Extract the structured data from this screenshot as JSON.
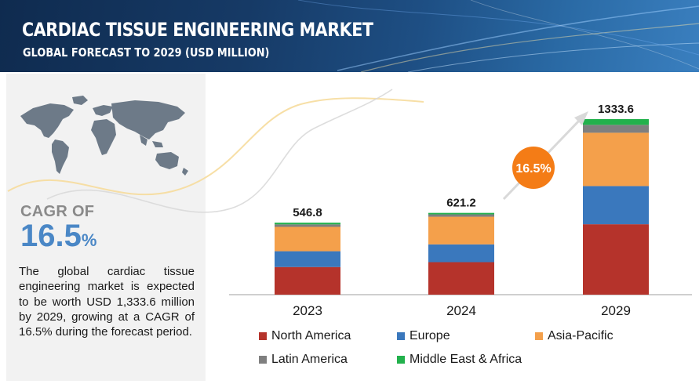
{
  "header": {
    "title": "CARDIAC TISSUE ENGINEERING MARKET",
    "subtitle": "GLOBAL FORECAST TO 2029 (USD MILLION)"
  },
  "sidebar": {
    "cagr_label": "CAGR OF",
    "cagr_number": "16.5",
    "cagr_unit": "%",
    "description": "The global cardiac tissue engineering market is expected to be worth USD 1,333.6 million by 2029, growing at a CAGR of 16.5% during the forecast period."
  },
  "growth_badge": "16.5%",
  "colors": {
    "north_america": "#b5332b",
    "europe": "#3a78bd",
    "asia_pacific": "#f4a04b",
    "latin_america": "#7f7f7f",
    "middle_east_africa": "#22b14c",
    "badge": "#f47c16",
    "accent": "#4a87c6"
  },
  "chart_data": {
    "type": "bar",
    "stacked": true,
    "categories": [
      "2023",
      "2024",
      "2029"
    ],
    "totals": [
      546.8,
      621.2,
      1333.6
    ],
    "total_labels": [
      "546.8",
      "621.2",
      "1333.6"
    ],
    "series": [
      {
        "name": "North America",
        "values": [
          210,
          247,
          535
        ]
      },
      {
        "name": "Europe",
        "values": [
          120,
          135,
          290
        ]
      },
      {
        "name": "Asia-Pacific",
        "values": [
          185,
          210,
          405
        ]
      },
      {
        "name": "Latin America",
        "values": [
          19,
          18,
          60
        ]
      },
      {
        "name": "Middle East & Africa",
        "values": [
          12.8,
          11.2,
          43.6
        ]
      }
    ],
    "legend_position": "bottom",
    "grid": false,
    "ylim": [
      0,
      1333.6
    ]
  }
}
